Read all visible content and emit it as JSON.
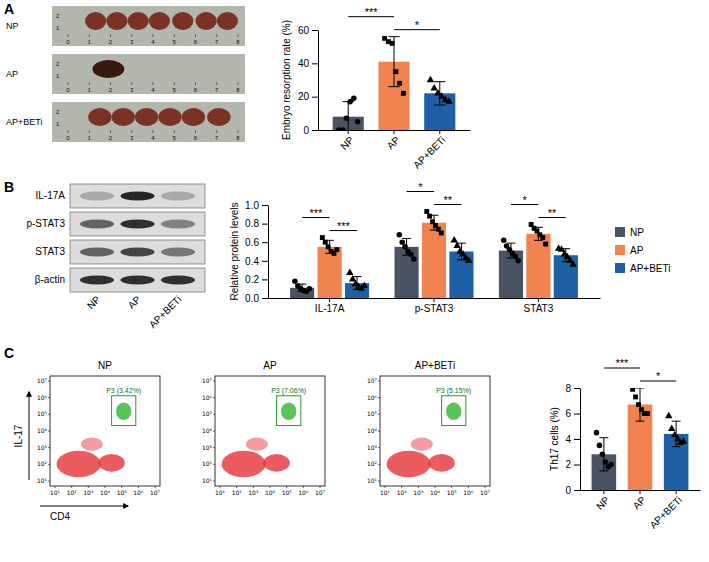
{
  "chart_data": [
    {
      "type": "bar",
      "ylabel": "Embryo resorption rate (%)",
      "categories": [
        "NP",
        "AP",
        "AP+BETi"
      ],
      "values": [
        8,
        41,
        22
      ],
      "errors": [
        9,
        15,
        7
      ],
      "points": [
        [
          0,
          0,
          7,
          17,
          19,
          5
        ],
        [
          55,
          53,
          52,
          35,
          28,
          22
        ],
        [
          30,
          25,
          22,
          20,
          18,
          17
        ]
      ],
      "colors": [
        "#4a5361",
        "#f0834f",
        "#1f5fa6"
      ],
      "markers": [
        "circle",
        "square",
        "triangle"
      ],
      "ylim": [
        0,
        60
      ],
      "yticks": [
        0,
        20,
        40,
        60
      ],
      "annotations": [
        {
          "from": 0,
          "to": 1,
          "text": "***"
        },
        {
          "from": 1,
          "to": 2,
          "text": "*"
        }
      ]
    },
    {
      "type": "bar",
      "ylabel": "Relative protein levels",
      "categories": [
        "IL-17A",
        "p-STAT3",
        "STAT3"
      ],
      "series": [
        {
          "name": "NP",
          "color": "#4a5361",
          "marker": "circle",
          "values": [
            0.11,
            0.55,
            0.51
          ],
          "errors": [
            0.04,
            0.09,
            0.08
          ],
          "points": [
            [
              0.18,
              0.13,
              0.1,
              0.08,
              0.07,
              0.1
            ],
            [
              0.68,
              0.6,
              0.55,
              0.5,
              0.47,
              0.42
            ],
            [
              0.62,
              0.56,
              0.52,
              0.48,
              0.45,
              0.4
            ]
          ]
        },
        {
          "name": "AP",
          "color": "#f0834f",
          "marker": "square",
          "values": [
            0.55,
            0.81,
            0.69
          ],
          "errors": [
            0.07,
            0.08,
            0.07
          ],
          "points": [
            [
              0.65,
              0.6,
              0.55,
              0.5,
              0.48,
              0.52
            ],
            [
              0.93,
              0.88,
              0.82,
              0.78,
              0.74,
              0.7
            ],
            [
              0.79,
              0.75,
              0.72,
              0.68,
              0.65,
              0.58
            ]
          ]
        },
        {
          "name": "AP+BETi",
          "color": "#1f5fa6",
          "marker": "triangle",
          "values": [
            0.16,
            0.5,
            0.46
          ],
          "errors": [
            0.07,
            0.09,
            0.07
          ],
          "points": [
            [
              0.27,
              0.2,
              0.15,
              0.12,
              0.1,
              0.13
            ],
            [
              0.62,
              0.56,
              0.5,
              0.47,
              0.43,
              0.4
            ],
            [
              0.53,
              0.52,
              0.47,
              0.44,
              0.4,
              0.36
            ]
          ]
        }
      ],
      "ylim": [
        0,
        1.0
      ],
      "yticks": [
        {
          "value": 0,
          "label": "0.0"
        },
        {
          "value": 0.2,
          "label": "0.2"
        },
        {
          "value": 0.4,
          "label": "0.4"
        },
        {
          "value": 0.6,
          "label": "0.6"
        },
        {
          "value": 0.8,
          "label": "0.8"
        },
        {
          "value": 1.0,
          "label": "1.0"
        }
      ],
      "legend": "right",
      "annotations": [
        {
          "category": 0,
          "from": 0,
          "to": 1,
          "text": "***"
        },
        {
          "category": 0,
          "from": 1,
          "to": 2,
          "text": "***"
        },
        {
          "category": 1,
          "from": 0,
          "to": 1,
          "text": "*"
        },
        {
          "category": 1,
          "from": 1,
          "to": 2,
          "text": "**"
        },
        {
          "category": 2,
          "from": 0,
          "to": 1,
          "text": "*"
        },
        {
          "category": 2,
          "from": 1,
          "to": 2,
          "text": "**"
        }
      ]
    },
    {
      "type": "bar",
      "ylabel": "Th17 cells (%)",
      "categories": [
        "NP",
        "AP",
        "AP+BETi"
      ],
      "values": [
        2.8,
        6.7,
        4.4
      ],
      "errors": [
        1.3,
        1.3,
        1.0
      ],
      "points": [
        [
          4.5,
          3.5,
          2.8,
          2.2,
          1.8,
          2.0
        ],
        [
          7.9,
          7.3,
          6.7,
          6.3,
          6.0,
          6.0
        ],
        [
          5.8,
          4.8,
          4.3,
          4.0,
          3.7,
          3.8
        ]
      ],
      "colors": [
        "#4a5361",
        "#f0834f",
        "#1f5fa6"
      ],
      "markers": [
        "circle",
        "square",
        "triangle"
      ],
      "ylim": [
        0,
        8
      ],
      "yticks": [
        0,
        2,
        4,
        6,
        8
      ],
      "annotations": [
        {
          "from": 0,
          "to": 1,
          "text": "***"
        },
        {
          "from": 1,
          "to": 2,
          "text": "*"
        }
      ]
    }
  ],
  "figure": {
    "letters": [
      "A",
      "B",
      "C"
    ],
    "photos": {
      "rows": [
        "NP",
        "AP",
        "AP+BETi"
      ],
      "ruler": [
        "0",
        "1",
        "2",
        "3",
        "4",
        "5",
        "6",
        "7",
        "8"
      ],
      "ruler_side": [
        "2",
        "1"
      ]
    },
    "blot": {
      "rows": [
        "IL-17A",
        "p-STAT3",
        "STAT3",
        "β-actin"
      ],
      "lanes": [
        "NP",
        "AP",
        "AP+BETi"
      ]
    },
    "flow": {
      "panels": [
        {
          "title": "NP",
          "gate": "P3 (3.42%)"
        },
        {
          "title": "AP",
          "gate": "P3 (7.06%)"
        },
        {
          "title": "AP+BETi",
          "gate": "P3 (5.15%)"
        }
      ],
      "x_label": "CD4",
      "y_label": "IL-17",
      "ticks": [
        "10¹",
        "10²",
        "10³",
        "10⁴",
        "10⁵",
        "10⁶",
        "10⁷"
      ]
    }
  }
}
